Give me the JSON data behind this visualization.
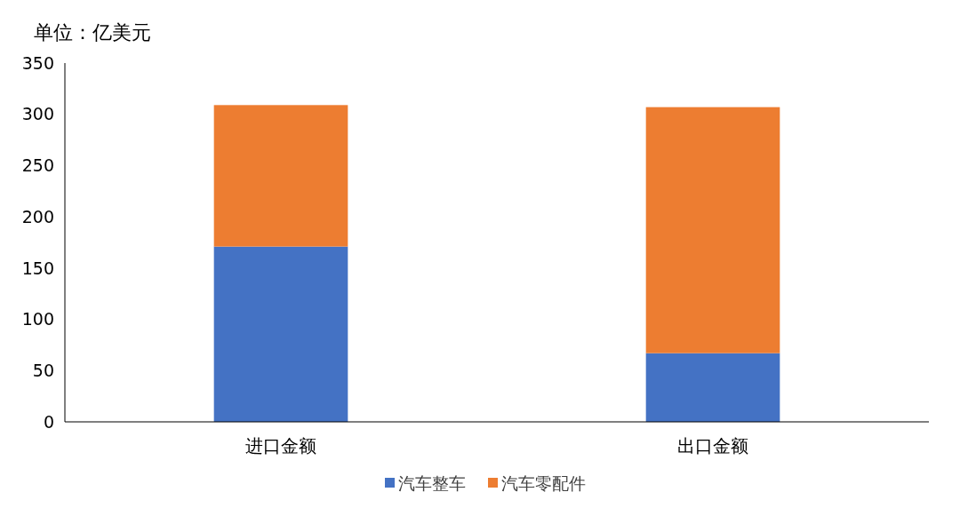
{
  "chart_data": {
    "type": "bar",
    "stacked": true,
    "ylabel": "单位：亿美元",
    "categories": [
      "进口金额",
      "出口金额"
    ],
    "series": [
      {
        "name": "汽车整车",
        "color": "#4472c4",
        "values": [
          171,
          67
        ]
      },
      {
        "name": "汽车零配件",
        "color": "#ed7d31",
        "values": [
          138,
          240
        ]
      }
    ],
    "ylim": [
      0,
      350
    ],
    "yticks": [
      0,
      50,
      100,
      150,
      200,
      250,
      300,
      350
    ],
    "grid": false,
    "legend": "bottom"
  }
}
